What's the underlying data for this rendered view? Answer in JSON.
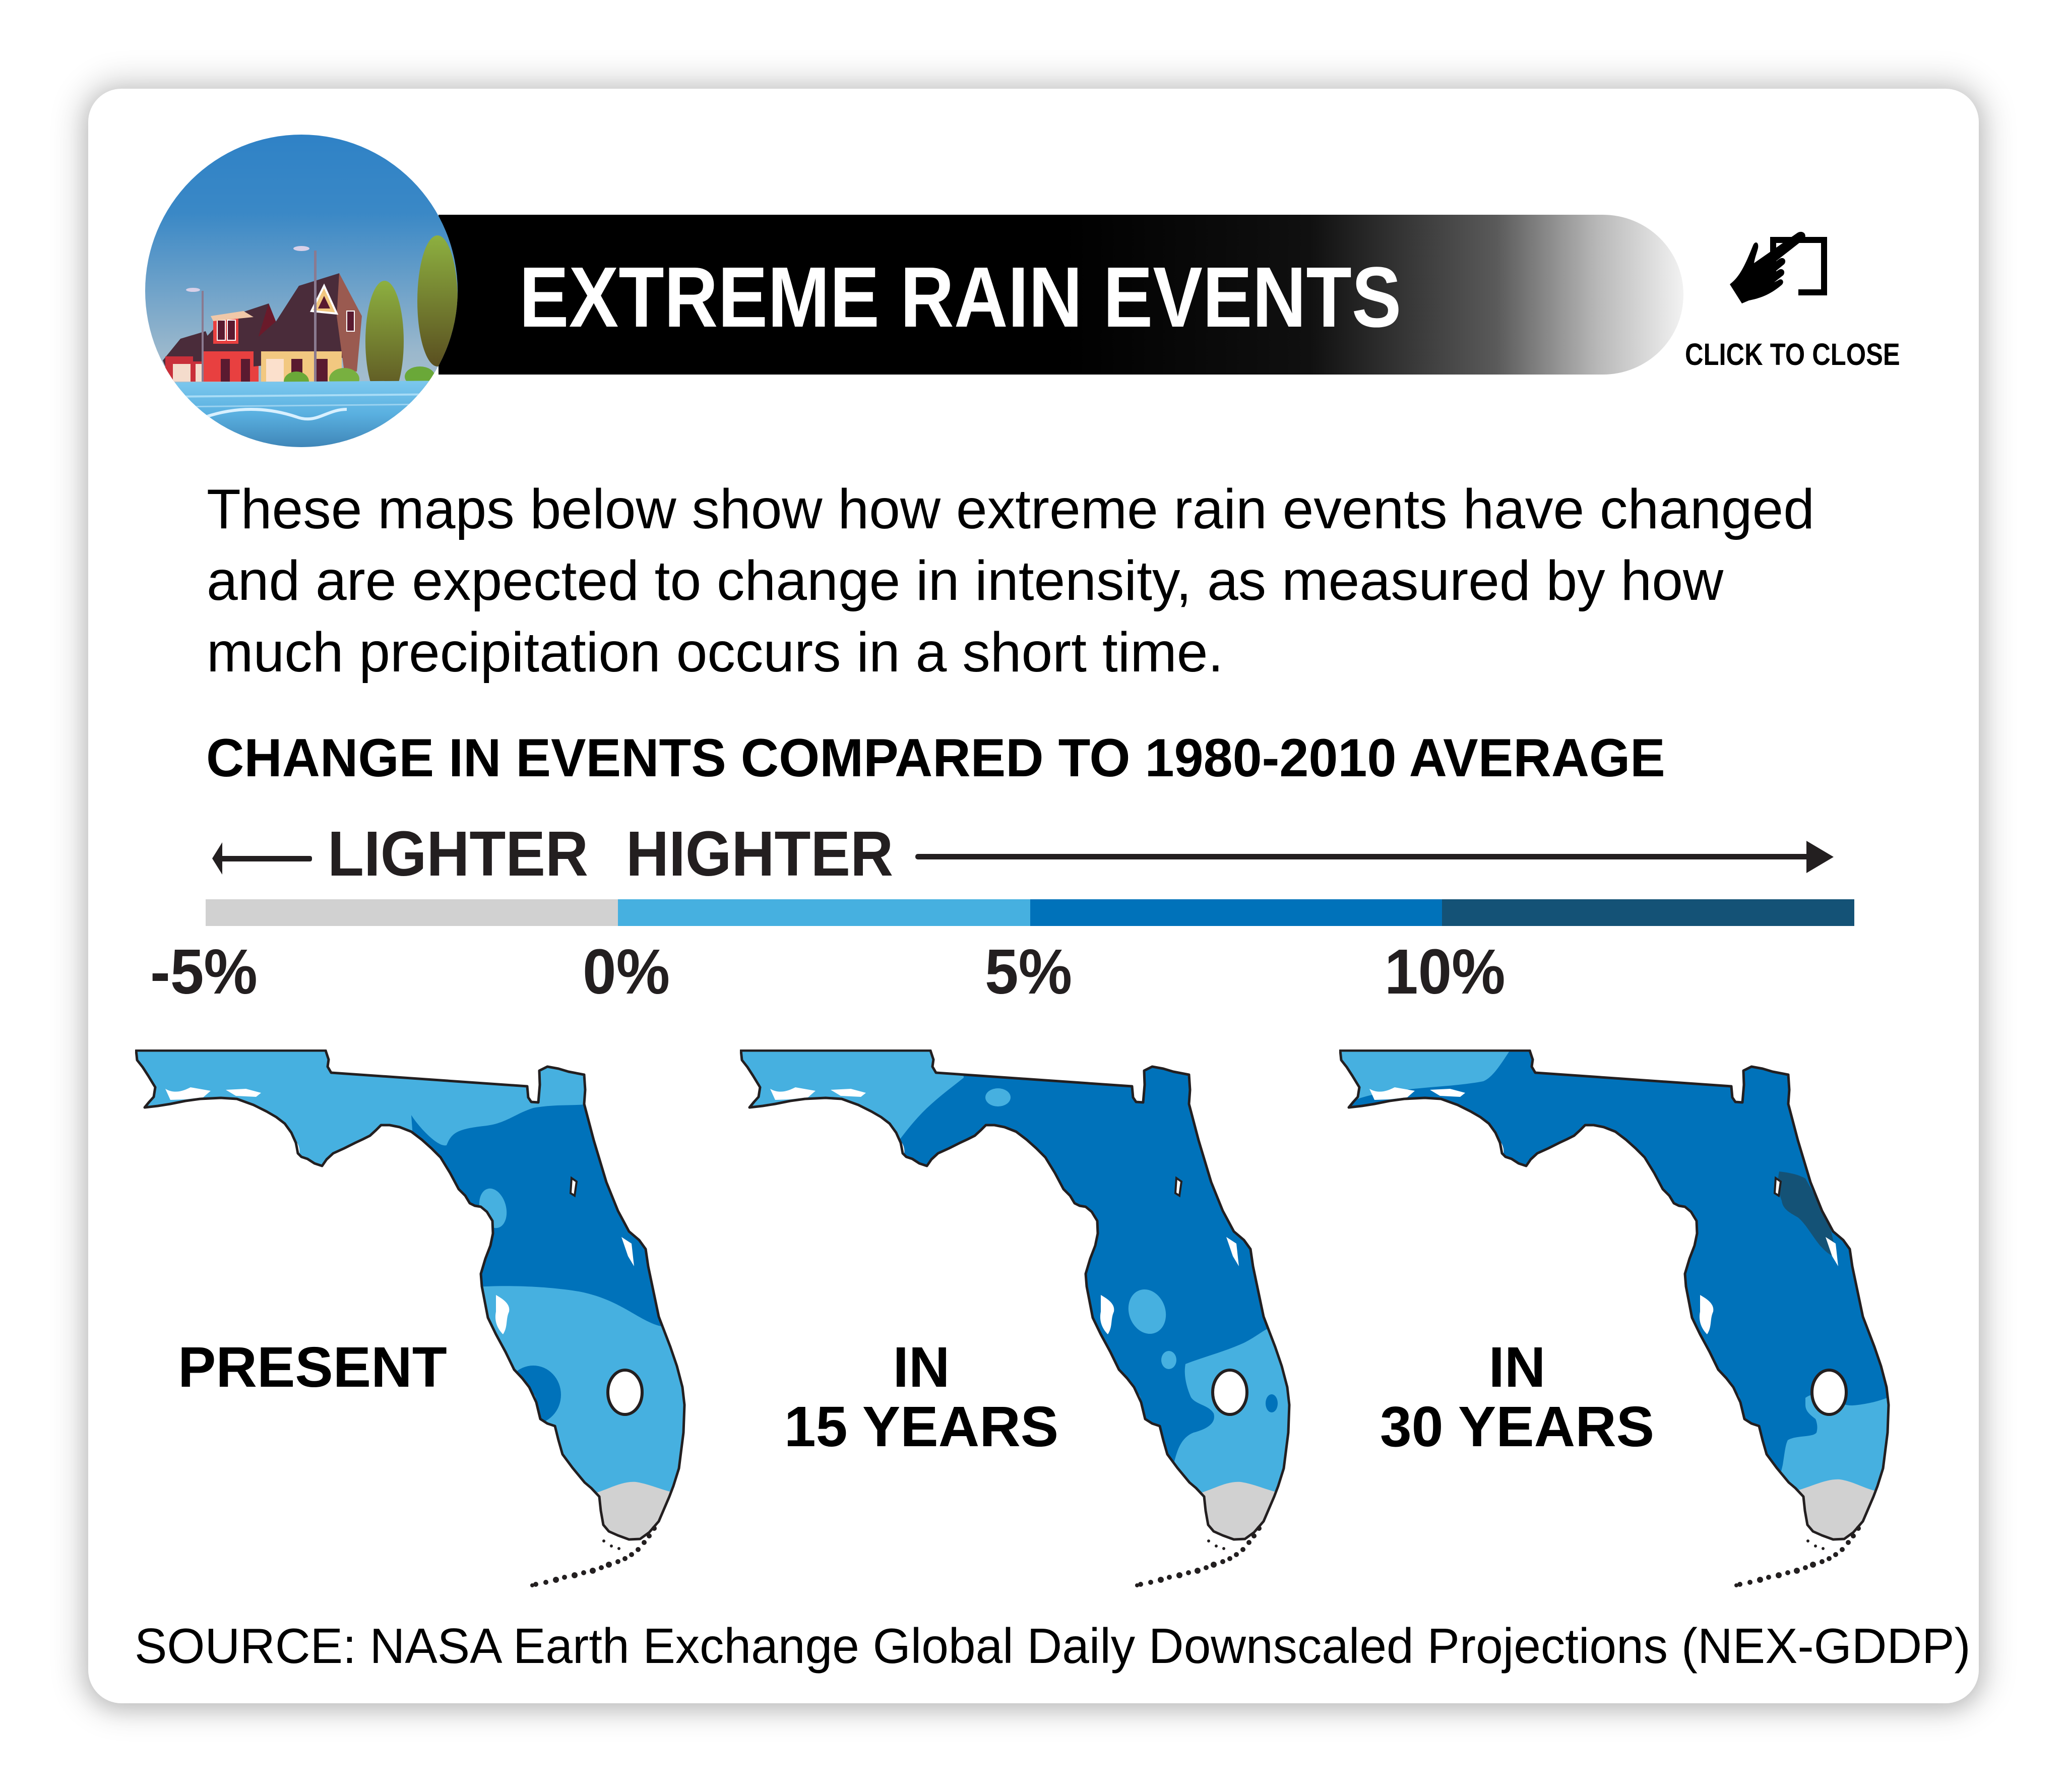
{
  "popup": {
    "title": "EXTREME RAIN EVENTS",
    "close_label": "CLICK TO CLOSE",
    "hero_icon": "flooded-houses-illustration",
    "close_icon": "hand-tap-icon"
  },
  "description": {
    "lines": [
      "These maps below show how extreme rain events have changed",
      "and are expected to change in intensity, as measured by how",
      "much precipitation occurs in a short time."
    ]
  },
  "legend": {
    "title": "CHANGE IN EVENTS COMPARED TO 1980-2010 AVERAGE",
    "lighter_label": "LIGHTER",
    "higher_label": "HIGHTER",
    "ticks": [
      "-5%",
      "0%",
      "5%",
      "10%"
    ],
    "colors": {
      "below_zero": "#D1D1D1",
      "zero_to_five": "#46B0E0",
      "five_to_ten": "#0072BA",
      "above_ten": "#145276"
    }
  },
  "maps": [
    {
      "label_lines": [
        "PRESENT"
      ]
    },
    {
      "label_lines": [
        "IN",
        "15 YEARS"
      ]
    },
    {
      "label_lines": [
        "IN",
        "30 YEARS"
      ]
    }
  ],
  "source": "SOURCE: NASA Earth Exchange Global Daily Downscaled Projections (NEX-GDDP)"
}
